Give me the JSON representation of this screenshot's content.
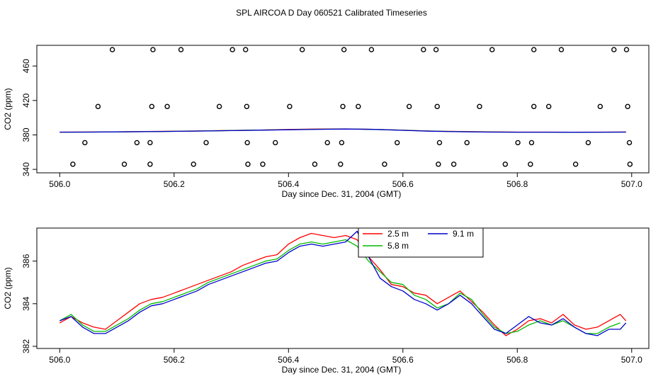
{
  "page_title": "SPL AIRCOA D  Day 060521  Calibrated Timeseries",
  "chart_data": [
    {
      "type": "scatter",
      "ylabel": "CO2 (ppm)",
      "xlabel": "Day since Dec. 31, 2004 (GMT)",
      "xlim": [
        505.96,
        507.03
      ],
      "ylim": [
        336,
        484
      ],
      "xticks": [
        506.0,
        506.2,
        506.4,
        506.6,
        506.8,
        507.0
      ],
      "xtick_labels": [
        "506.0",
        "506.2",
        "506.4",
        "506.6",
        "506.8",
        "507.0"
      ],
      "yticks": [
        340,
        380,
        420,
        460
      ],
      "ytick_labels": [
        "340",
        "380",
        "420",
        "460"
      ],
      "points": [
        {
          "x": 506.092,
          "y": 479
        },
        {
          "x": 506.163,
          "y": 479
        },
        {
          "x": 506.212,
          "y": 479
        },
        {
          "x": 506.302,
          "y": 479
        },
        {
          "x": 506.325,
          "y": 479
        },
        {
          "x": 506.424,
          "y": 479
        },
        {
          "x": 506.497,
          "y": 479
        },
        {
          "x": 506.545,
          "y": 479
        },
        {
          "x": 506.636,
          "y": 479
        },
        {
          "x": 506.658,
          "y": 479
        },
        {
          "x": 506.756,
          "y": 479
        },
        {
          "x": 506.829,
          "y": 479
        },
        {
          "x": 506.877,
          "y": 479
        },
        {
          "x": 506.969,
          "y": 479
        },
        {
          "x": 506.991,
          "y": 479
        },
        {
          "x": 506.067,
          "y": 413
        },
        {
          "x": 506.161,
          "y": 413
        },
        {
          "x": 506.188,
          "y": 413
        },
        {
          "x": 506.279,
          "y": 413
        },
        {
          "x": 506.327,
          "y": 413
        },
        {
          "x": 506.402,
          "y": 413
        },
        {
          "x": 506.495,
          "y": 413
        },
        {
          "x": 506.522,
          "y": 413
        },
        {
          "x": 506.611,
          "y": 413
        },
        {
          "x": 506.66,
          "y": 413
        },
        {
          "x": 506.734,
          "y": 413
        },
        {
          "x": 506.829,
          "y": 413
        },
        {
          "x": 506.855,
          "y": 413
        },
        {
          "x": 506.945,
          "y": 413
        },
        {
          "x": 506.993,
          "y": 413
        },
        {
          "x": 506.044,
          "y": 371
        },
        {
          "x": 506.135,
          "y": 371
        },
        {
          "x": 506.158,
          "y": 371
        },
        {
          "x": 506.256,
          "y": 371
        },
        {
          "x": 506.328,
          "y": 371
        },
        {
          "x": 506.377,
          "y": 371
        },
        {
          "x": 506.468,
          "y": 371
        },
        {
          "x": 506.493,
          "y": 371
        },
        {
          "x": 506.59,
          "y": 371
        },
        {
          "x": 506.664,
          "y": 371
        },
        {
          "x": 506.712,
          "y": 371
        },
        {
          "x": 506.801,
          "y": 371
        },
        {
          "x": 506.825,
          "y": 371
        },
        {
          "x": 506.924,
          "y": 371
        },
        {
          "x": 506.996,
          "y": 371
        },
        {
          "x": 506.023,
          "y": 346
        },
        {
          "x": 506.113,
          "y": 346
        },
        {
          "x": 506.158,
          "y": 346
        },
        {
          "x": 506.234,
          "y": 346
        },
        {
          "x": 506.329,
          "y": 346
        },
        {
          "x": 506.355,
          "y": 346
        },
        {
          "x": 506.446,
          "y": 346
        },
        {
          "x": 506.491,
          "y": 346
        },
        {
          "x": 506.568,
          "y": 346
        },
        {
          "x": 506.662,
          "y": 346
        },
        {
          "x": 506.689,
          "y": 346
        },
        {
          "x": 506.779,
          "y": 346
        },
        {
          "x": 506.823,
          "y": 346
        },
        {
          "x": 506.902,
          "y": 346
        },
        {
          "x": 506.997,
          "y": 346
        }
      ],
      "series": [
        {
          "name": "2.5 m",
          "color": "#ff0000",
          "x": [
            506.0,
            506.05,
            506.1,
            506.15,
            506.2,
            506.25,
            506.3,
            506.35,
            506.4,
            506.45,
            506.5,
            506.55,
            506.6,
            506.65,
            506.7,
            506.75,
            506.8,
            506.85,
            506.9,
            506.95,
            506.99
          ],
          "values": [
            383.3,
            383.4,
            383.6,
            383.9,
            384.3,
            384.7,
            385.2,
            385.7,
            386.3,
            386.8,
            387.0,
            386.5,
            385.5,
            384.5,
            383.9,
            383.5,
            383.3,
            383.3,
            383.2,
            383.3,
            383.4
          ]
        },
        {
          "name": "5.8 m",
          "color": "#00bb00",
          "x": [
            506.0,
            506.05,
            506.1,
            506.15,
            506.2,
            506.25,
            506.3,
            506.35,
            506.4,
            506.45,
            506.5,
            506.55,
            506.6,
            506.65,
            506.7,
            506.75,
            506.8,
            506.85,
            506.9,
            506.95,
            506.99
          ],
          "values": [
            383.2,
            383.3,
            383.5,
            383.8,
            384.2,
            384.6,
            385.1,
            385.6,
            386.1,
            386.6,
            386.9,
            386.4,
            385.4,
            384.4,
            383.8,
            383.4,
            383.2,
            383.2,
            383.1,
            383.2,
            383.3
          ]
        },
        {
          "name": "9.1 m",
          "color": "#0000cc",
          "x": [
            506.0,
            506.05,
            506.1,
            506.15,
            506.2,
            506.25,
            506.3,
            506.35,
            506.4,
            506.45,
            506.5,
            506.55,
            506.6,
            506.65,
            506.7,
            506.75,
            506.8,
            506.85,
            506.9,
            506.95,
            506.99
          ],
          "values": [
            383.2,
            383.3,
            383.5,
            383.8,
            384.1,
            384.5,
            385.0,
            385.5,
            386.0,
            386.5,
            386.8,
            386.4,
            385.3,
            384.3,
            383.7,
            383.3,
            383.2,
            383.2,
            383.1,
            383.2,
            383.3
          ]
        }
      ]
    },
    {
      "type": "line",
      "ylabel": "CO2 (ppm)",
      "xlabel": "Day since Dec. 31, 2004 (GMT)",
      "xlim": [
        505.96,
        507.03
      ],
      "ylim": [
        381.9,
        387.55
      ],
      "xticks": [
        506.0,
        506.2,
        506.4,
        506.6,
        506.8,
        507.0
      ],
      "xtick_labels": [
        "506.0",
        "506.2",
        "506.4",
        "506.6",
        "506.8",
        "507.0"
      ],
      "yticks": [
        382,
        384,
        386
      ],
      "ytick_labels": [
        "382",
        "384",
        "386"
      ],
      "legend": {
        "position": "top-center",
        "entries": [
          "2.5 m",
          "5.8 m",
          "9.1 m"
        ]
      },
      "series": [
        {
          "name": "2.5 m",
          "color": "#ff0000",
          "x": [
            506.0,
            506.02,
            506.04,
            506.06,
            506.08,
            506.1,
            506.12,
            506.14,
            506.16,
            506.18,
            506.2,
            506.22,
            506.24,
            506.26,
            506.28,
            506.3,
            506.32,
            506.34,
            506.36,
            506.38,
            506.4,
            506.42,
            506.44,
            506.46,
            506.48,
            506.5,
            506.52,
            506.54,
            506.56,
            506.58,
            506.6,
            506.62,
            506.64,
            506.66,
            506.68,
            506.7,
            506.72,
            506.74,
            506.76,
            506.78,
            506.8,
            506.82,
            506.84,
            506.86,
            506.88,
            506.9,
            506.92,
            506.94,
            506.96,
            506.98,
            506.99
          ],
          "values": [
            383.1,
            383.4,
            383.1,
            382.9,
            382.8,
            383.2,
            383.6,
            384.0,
            384.2,
            384.3,
            384.5,
            384.7,
            384.9,
            385.1,
            385.3,
            385.5,
            385.8,
            386.0,
            386.2,
            386.3,
            386.8,
            387.1,
            387.3,
            387.2,
            387.1,
            387.2,
            387.0,
            386.2,
            385.6,
            384.9,
            384.8,
            384.5,
            384.4,
            384.0,
            384.3,
            384.6,
            384.1,
            383.6,
            383.0,
            382.5,
            382.8,
            383.2,
            383.3,
            383.1,
            383.5,
            383.0,
            382.8,
            382.9,
            383.2,
            383.5,
            383.2
          ]
        },
        {
          "name": "5.8 m",
          "color": "#00bb00",
          "x": [
            506.0,
            506.02,
            506.04,
            506.06,
            506.08,
            506.1,
            506.12,
            506.14,
            506.16,
            506.18,
            506.2,
            506.22,
            506.24,
            506.26,
            506.28,
            506.3,
            506.32,
            506.34,
            506.36,
            506.38,
            506.4,
            506.42,
            506.44,
            506.46,
            506.48,
            506.5,
            506.52,
            506.54,
            506.56,
            506.58,
            506.6,
            506.62,
            506.64,
            506.66,
            506.68,
            506.7,
            506.72,
            506.74,
            506.76,
            506.78,
            506.8,
            506.82,
            506.84,
            506.86,
            506.88,
            506.9,
            506.92,
            506.94,
            506.96,
            506.98
          ],
          "values": [
            383.2,
            383.5,
            383.0,
            382.7,
            382.7,
            383.0,
            383.3,
            383.7,
            384.0,
            384.1,
            384.3,
            384.5,
            384.7,
            385.0,
            385.2,
            385.4,
            385.6,
            385.8,
            386.0,
            386.1,
            386.5,
            386.8,
            386.9,
            386.8,
            386.9,
            387.0,
            386.7,
            386.0,
            385.5,
            385.0,
            384.9,
            384.4,
            384.2,
            383.8,
            384.0,
            384.5,
            384.2,
            383.5,
            382.9,
            382.6,
            382.7,
            383.0,
            383.2,
            383.0,
            383.2,
            382.9,
            382.6,
            382.6,
            382.9,
            383.1
          ]
        },
        {
          "name": "9.1 m",
          "color": "#0000cc",
          "x": [
            506.0,
            506.02,
            506.04,
            506.06,
            506.08,
            506.1,
            506.12,
            506.14,
            506.16,
            506.18,
            506.2,
            506.22,
            506.24,
            506.26,
            506.28,
            506.3,
            506.32,
            506.34,
            506.36,
            506.38,
            506.4,
            506.42,
            506.44,
            506.46,
            506.48,
            506.5,
            506.52,
            506.54,
            506.56,
            506.58,
            506.6,
            506.62,
            506.64,
            506.66,
            506.68,
            506.7,
            506.72,
            506.74,
            506.76,
            506.78,
            506.8,
            506.82,
            506.84,
            506.86,
            506.88,
            506.9,
            506.92,
            506.94,
            506.96,
            506.98,
            506.99
          ],
          "values": [
            383.2,
            383.4,
            382.9,
            382.6,
            382.6,
            382.9,
            383.2,
            383.6,
            383.9,
            384.0,
            384.2,
            384.4,
            384.6,
            384.9,
            385.1,
            385.3,
            385.5,
            385.7,
            385.9,
            386.0,
            386.4,
            386.7,
            386.8,
            386.7,
            386.8,
            386.9,
            387.4,
            386.2,
            385.2,
            384.8,
            384.6,
            384.2,
            384.0,
            383.7,
            384.0,
            384.4,
            384.0,
            383.4,
            382.8,
            382.6,
            383.0,
            383.4,
            383.1,
            383.0,
            383.3,
            382.9,
            382.6,
            382.5,
            382.8,
            382.8,
            383.1
          ]
        }
      ]
    }
  ]
}
